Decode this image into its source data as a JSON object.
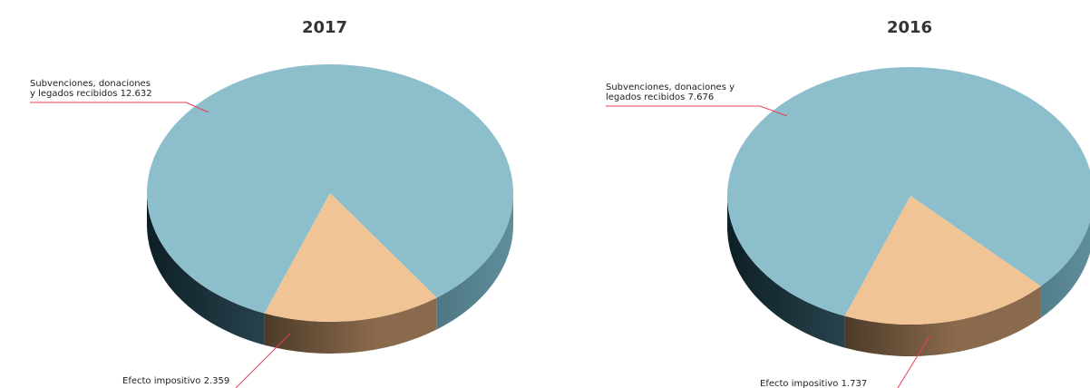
{
  "chart_data": [
    {
      "type": "pie",
      "title": "2017",
      "slices": [
        {
          "label_lines": [
            "Subvenciones,      donaciones",
            "y legados recibidos   12.632"
          ],
          "name": "Subvenciones, donaciones y legados recibidos",
          "value": 12632
        },
        {
          "label_lines": [
            "Efecto impositivo   2.359"
          ],
          "name": "Efecto impositivo",
          "value": 2359
        }
      ]
    },
    {
      "type": "pie",
      "title": "2016",
      "slices": [
        {
          "label_lines": [
            "Subvenciones,  donaciones  y",
            "legados recibidos   7.676"
          ],
          "name": "Subvenciones, donaciones y legados recibidos",
          "value": 7676
        },
        {
          "label_lines": [
            "Efecto impositivo   1.737"
          ],
          "name": "Efecto impositivo",
          "value": 1737
        }
      ]
    }
  ],
  "colors": {
    "main_top": "#8dbecb",
    "main_side_dark": "#0d1f26",
    "main_side_light": "#5f8e9b",
    "minor_top": "#f0c495",
    "minor_side_dark": "#2a2016",
    "minor_side_light": "#8a6a4c",
    "leader": "#e8405a"
  }
}
